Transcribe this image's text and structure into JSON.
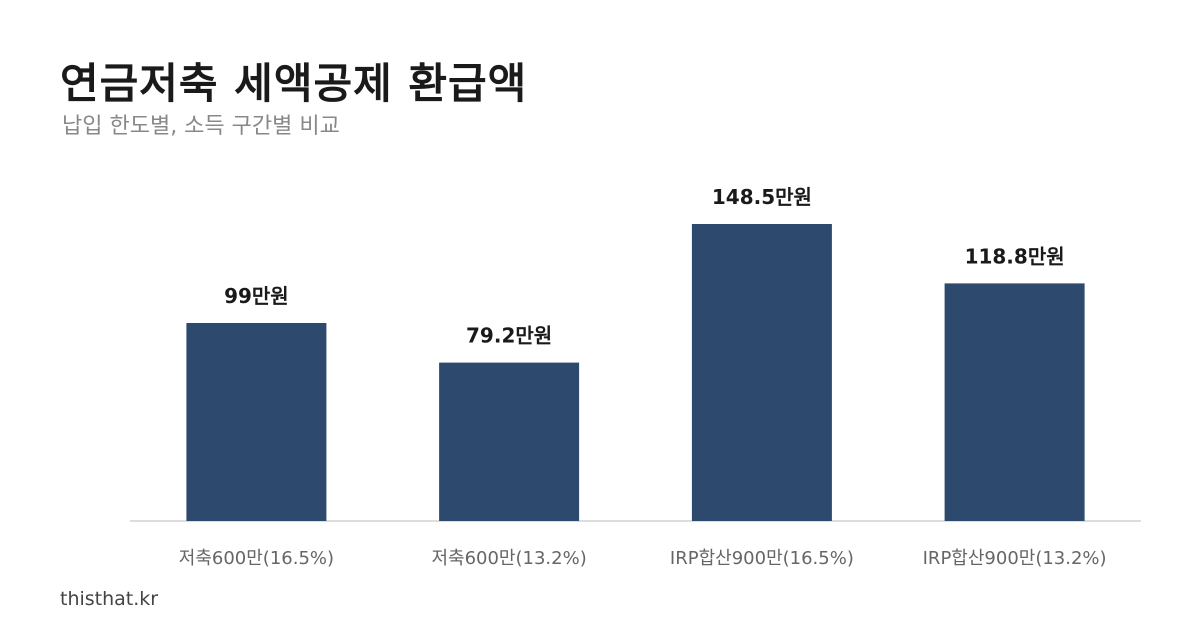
{
  "header": {
    "title": "연금저축 세액공제 환급액",
    "subtitle": "납입 한도별, 소득 구간별 비교"
  },
  "footer": {
    "source": "thisthat.kr"
  },
  "colors": {
    "bar": "#2d4a6e",
    "baseline": "#dddddd",
    "data_label": "#1a1a1a",
    "tick_label": "#666666"
  },
  "chart_data": {
    "type": "bar",
    "title": "연금저축 세액공제 환급액",
    "subtitle": "납입 한도별, 소득 구간별 비교",
    "xlabel": "",
    "ylabel": "",
    "unit": "만원",
    "grid": false,
    "legend": "none",
    "categories": [
      "저축600만(16.5%)",
      "저축600만(13.2%)",
      "IRP합산900만(16.5%)",
      "IRP합산900만(13.2%)"
    ],
    "values": [
      99,
      79.2,
      148.5,
      118.8
    ],
    "data_labels": [
      "99만원",
      "79.2만원",
      "148.5만원",
      "118.8만원"
    ],
    "ylim": [
      0,
      148.5
    ]
  }
}
